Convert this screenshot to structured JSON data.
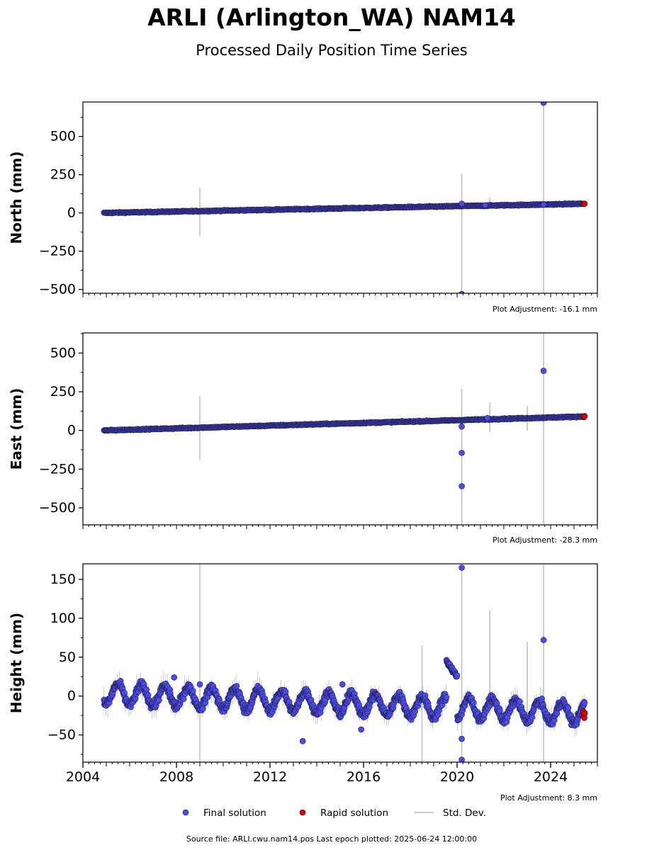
{
  "title": "ARLI (Arlington_WA) NAM14",
  "subtitle": "Processed Daily Position Time Series",
  "source_text": "Source file: ARLI.cwu.nam14.pos  Last epoch plotted: 2025-06-24 12:00:00",
  "colors": {
    "final": "#4b4bea",
    "rapid": "#e00000",
    "stddev": "#bdbdbd",
    "edge": "#1a1a3a"
  },
  "legend": {
    "position": "bottom-center",
    "items": [
      {
        "label": "Final solution",
        "color": "#4b4bea"
      },
      {
        "label": "Rapid solution",
        "color": "#e00000"
      },
      {
        "label": "Std. Dev.",
        "color": "#bdbdbd"
      }
    ]
  },
  "chart_data": [
    {
      "type": "scatter",
      "ylabel": "North (mm)",
      "adjustment": "Plot Adjustment: -16.1 mm",
      "xlim": [
        2004.0,
        2026.0
      ],
      "ylim": [
        -525,
        725
      ],
      "yticks": [
        -500,
        -250,
        0,
        250,
        500
      ],
      "ytick_labels": [
        "−500",
        "−250",
        "0",
        "250",
        "500"
      ],
      "trend": {
        "start": [
          2004.9,
          0
        ],
        "end": [
          2025.45,
          60
        ]
      },
      "outliers": [
        [
          2020.2,
          60
        ],
        [
          2020.2,
          -530
        ],
        [
          2023.7,
          720
        ],
        [
          2021.2,
          50
        ],
        [
          2023.7,
          55
        ]
      ],
      "errorbars": [
        [
          2009.0,
          -150,
          165
        ],
        [
          2020.2,
          -520,
          255
        ],
        [
          2023.7,
          -525,
          725
        ],
        [
          2021.4,
          40,
          100
        ]
      ],
      "rapid": [
        [
          2025.42,
          59
        ],
        [
          2025.45,
          60
        ]
      ]
    },
    {
      "type": "scatter",
      "ylabel": "East (mm)",
      "adjustment": "Plot Adjustment: -28.3 mm",
      "xlim": [
        2004.0,
        2026.0
      ],
      "ylim": [
        -610,
        630
      ],
      "yticks": [
        -500,
        -250,
        0,
        250,
        500
      ],
      "ytick_labels": [
        "−500",
        "−250",
        "0",
        "250",
        "500"
      ],
      "trend": {
        "start": [
          2004.9,
          0
        ],
        "end": [
          2025.45,
          90
        ]
      },
      "outliers": [
        [
          2020.2,
          25
        ],
        [
          2020.2,
          -145
        ],
        [
          2020.2,
          -360
        ],
        [
          2023.7,
          385
        ],
        [
          2021.3,
          80
        ]
      ],
      "errorbars": [
        [
          2009.0,
          -190,
          220
        ],
        [
          2020.2,
          -610,
          270
        ],
        [
          2021.4,
          -10,
          180
        ],
        [
          2023.0,
          0,
          160
        ],
        [
          2023.7,
          -610,
          630
        ]
      ],
      "rapid": [
        [
          2025.42,
          89
        ],
        [
          2025.45,
          90
        ]
      ]
    },
    {
      "type": "scatter",
      "ylabel": "Height (mm)",
      "adjustment": "Plot Adjustment: 8.3 mm",
      "xlim": [
        2004.0,
        2026.0
      ],
      "ylim": [
        -85,
        170
      ],
      "xticks": [
        2004,
        2008,
        2012,
        2016,
        2020,
        2024
      ],
      "xtick_labels": [
        "2004",
        "2008",
        "2012",
        "2016",
        "2020",
        "2024"
      ],
      "yticks": [
        -50,
        0,
        50,
        100,
        150
      ],
      "ytick_labels": [
        "−50",
        "0",
        "50",
        "100",
        "150"
      ],
      "seasonal": {
        "start": 2004.9,
        "end": 2025.45,
        "amplitude": 13,
        "base_start": 3,
        "base_end": -22
      },
      "offset_segment": {
        "start": 2019.55,
        "end": 2020.0,
        "from": 45,
        "to": 25
      },
      "outliers": [
        [
          2013.4,
          -58
        ],
        [
          2015.1,
          15
        ],
        [
          2015.9,
          -43
        ],
        [
          2020.2,
          165
        ],
        [
          2020.2,
          -55
        ],
        [
          2020.2,
          -82
        ],
        [
          2023.7,
          72
        ],
        [
          2009.0,
          15
        ],
        [
          2007.9,
          24
        ]
      ],
      "errorbars": [
        [
          2009.0,
          -85,
          170
        ],
        [
          2018.5,
          -85,
          65
        ],
        [
          2020.2,
          -85,
          170
        ],
        [
          2021.4,
          -25,
          110
        ],
        [
          2023.0,
          -40,
          70
        ],
        [
          2023.7,
          -85,
          170
        ]
      ],
      "rapid": [
        [
          2025.4,
          -20
        ],
        [
          2025.42,
          -25
        ],
        [
          2025.44,
          -28
        ],
        [
          2025.46,
          -22
        ]
      ]
    }
  ]
}
